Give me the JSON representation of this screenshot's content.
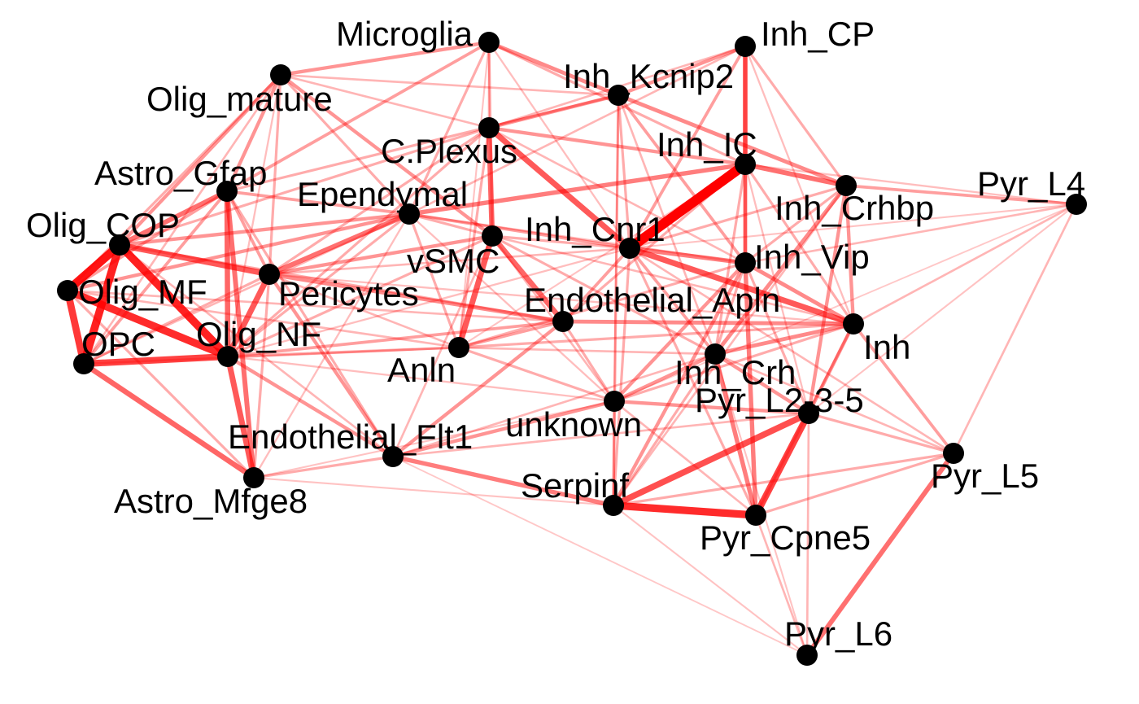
{
  "network": {
    "edge_color": "#ff0000",
    "node_color": "#000000",
    "label_color": "#000000",
    "nodes": [
      {
        "id": "Microglia",
        "label": "Microglia"
      },
      {
        "id": "Olig_mature",
        "label": "Olig_mature"
      },
      {
        "id": "Inh_CP",
        "label": "Inh_CP"
      },
      {
        "id": "Inh_Kcnip2",
        "label": "Inh_Kcnip2"
      },
      {
        "id": "C.Plexus",
        "label": "C.Plexus"
      },
      {
        "id": "Inh_IC",
        "label": "Inh_IC"
      },
      {
        "id": "Astro_Gfap",
        "label": "Astro_Gfap"
      },
      {
        "id": "Ependymal",
        "label": "Ependymal"
      },
      {
        "id": "Inh_Crhbp",
        "label": "Inh_Crhbp"
      },
      {
        "id": "Pyr_L4",
        "label": "Pyr_L4"
      },
      {
        "id": "Olig_COP",
        "label": "Olig_COP"
      },
      {
        "id": "vSMC",
        "label": "vSMC"
      },
      {
        "id": "Inh_Cnr1",
        "label": "Inh_Cnr1"
      },
      {
        "id": "Inh_Vip",
        "label": "Inh_Vip"
      },
      {
        "id": "Olig_MF",
        "label": "Olig_MF"
      },
      {
        "id": "Pericytes",
        "label": "Pericytes"
      },
      {
        "id": "Endothelial_Apln",
        "label": "Endothelial_Apln"
      },
      {
        "id": "Inh",
        "label": "Inh"
      },
      {
        "id": "OPC",
        "label": "OPC"
      },
      {
        "id": "Olig_NF",
        "label": "Olig_NF"
      },
      {
        "id": "Anln",
        "label": "Anln"
      },
      {
        "id": "Inh_Crh",
        "label": "Inh_Crh"
      },
      {
        "id": "unknown",
        "label": "unknown"
      },
      {
        "id": "Pyr_L2-3-5",
        "label": "Pyr_L2-3-5"
      },
      {
        "id": "Endothelial_Flt1",
        "label": "Endothelial_Flt1"
      },
      {
        "id": "Pyr_L5",
        "label": "Pyr_L5"
      },
      {
        "id": "Serpinf",
        "label": "Serpinf"
      },
      {
        "id": "Astro_Mfge8",
        "label": "Astro_Mfge8"
      },
      {
        "id": "Pyr_Cpne5",
        "label": "Pyr_Cpne5"
      },
      {
        "id": "Pyr_L6",
        "label": "Pyr_L6"
      }
    ],
    "edges": [
      {
        "s": "Inh_IC",
        "t": "Inh_Cnr1",
        "w": 1.0
      },
      {
        "s": "Olig_COP",
        "t": "Olig_MF",
        "w": 0.85
      },
      {
        "s": "Olig_COP",
        "t": "OPC",
        "w": 0.8
      },
      {
        "s": "Olig_COP",
        "t": "Olig_NF",
        "w": 0.8
      },
      {
        "s": "Olig_MF",
        "t": "Olig_NF",
        "w": 0.75
      },
      {
        "s": "Olig_MF",
        "t": "OPC",
        "w": 0.7
      },
      {
        "s": "OPC",
        "t": "Olig_NF",
        "w": 0.65
      },
      {
        "s": "Serpinf",
        "t": "Pyr_Cpne5",
        "w": 0.75
      },
      {
        "s": "Pyr_L2-3-5",
        "t": "Pyr_Cpne5",
        "w": 0.65
      },
      {
        "s": "Pyr_L2-3-5",
        "t": "Serpinf",
        "w": 0.6
      },
      {
        "s": "Olig_COP",
        "t": "Pericytes",
        "w": 0.55
      },
      {
        "s": "Astro_Gfap",
        "t": "Olig_NF",
        "w": 0.5
      },
      {
        "s": "Astro_Gfap",
        "t": "Olig_COP",
        "w": 0.45
      },
      {
        "s": "Olig_NF",
        "t": "Astro_Mfge8",
        "w": 0.55
      },
      {
        "s": "OPC",
        "t": "Astro_Mfge8",
        "w": 0.5
      },
      {
        "s": "Olig_NF",
        "t": "Pericytes",
        "w": 0.55
      },
      {
        "s": "vSMC",
        "t": "Anln",
        "w": 0.55
      },
      {
        "s": "vSMC",
        "t": "C.Plexus",
        "w": 0.5
      },
      {
        "s": "C.Plexus",
        "t": "Inh_Cnr1",
        "w": 0.55
      },
      {
        "s": "vSMC",
        "t": "Endothelial_Apln",
        "w": 0.5
      },
      {
        "s": "Inh_Cnr1",
        "t": "Inh",
        "w": 0.55
      },
      {
        "s": "Ependymal",
        "t": "Pericytes",
        "w": 0.45
      },
      {
        "s": "Ependymal",
        "t": "Inh_IC",
        "w": 0.4
      },
      {
        "s": "Inh_IC",
        "t": "Inh_Crhbp",
        "w": 0.45
      },
      {
        "s": "Inh_CP",
        "t": "Inh_IC",
        "w": 0.45
      },
      {
        "s": "Pyr_L5",
        "t": "Pyr_L6",
        "w": 0.45
      },
      {
        "s": "Astro_Gfap",
        "t": "Astro_Mfge8",
        "w": 0.45
      },
      {
        "s": "Endothelial_Flt1",
        "t": "Serpinf",
        "w": 0.4
      },
      {
        "s": "Inh_Vip",
        "t": "Pyr_Cpne5",
        "w": 0.4
      },
      {
        "s": "Inh_Crh",
        "t": "Pyr_Cpne5",
        "w": 0.4
      },
      {
        "s": "Inh_Cnr1",
        "t": "Inh_Vip",
        "w": 0.4
      },
      {
        "s": "Endothelial_Apln",
        "t": "Inh",
        "w": 0.35
      },
      {
        "s": "Microglia",
        "t": "Inh_Kcnip2",
        "w": 0.35
      },
      {
        "s": "Microglia",
        "t": "Olig_mature",
        "w": 0.3
      },
      {
        "s": "Inh_Kcnip2",
        "t": "Inh_Crhbp",
        "w": 0.35
      },
      {
        "s": "Inh_Crhbp",
        "t": "Inh_Crh",
        "w": 0.35
      },
      {
        "s": "Inh_Crhbp",
        "t": "Pyr_L2-3-5",
        "w": 0.3
      },
      {
        "s": "Inh",
        "t": "Inh_Crh",
        "w": 0.35
      },
      {
        "s": "Inh_Vip",
        "t": "Inh",
        "w": 0.35
      },
      {
        "s": "Inh_IC",
        "t": "Inh_Vip",
        "w": 0.35
      },
      {
        "s": "Olig_mature",
        "t": "Astro_Gfap",
        "w": 0.3
      },
      {
        "s": "Olig_mature",
        "t": "Olig_COP",
        "w": 0.3
      },
      {
        "s": "Olig_mature",
        "t": "vSMC",
        "w": 0.3
      },
      {
        "s": "C.Plexus",
        "t": "Inh_Kcnip2",
        "w": 0.3
      },
      {
        "s": "C.Plexus",
        "t": "Inh_IC",
        "w": 0.3
      },
      {
        "s": "Pericytes",
        "t": "Endothelial_Apln",
        "w": 0.35
      },
      {
        "s": "Pericytes",
        "t": "Endothelial_Flt1",
        "w": 0.3
      },
      {
        "s": "Pericytes",
        "t": "vSMC",
        "w": 0.3
      },
      {
        "s": "Olig_COP",
        "t": "Ependymal",
        "w": 0.3
      },
      {
        "s": "Olig_MF",
        "t": "Ependymal",
        "w": 0.3
      },
      {
        "s": "Olig_NF",
        "t": "Endothelial_Flt1",
        "w": 0.3
      },
      {
        "s": "Endothelial_Flt1",
        "t": "unknown",
        "w": 0.3
      },
      {
        "s": "Endothelial_Flt1",
        "t": "Endothelial_Apln",
        "w": 0.3
      },
      {
        "s": "unknown",
        "t": "Inh_Crh",
        "w": 0.3
      },
      {
        "s": "unknown",
        "t": "Inh_Vip",
        "w": 0.3
      },
      {
        "s": "unknown",
        "t": "Pyr_L2-3-5",
        "w": 0.3
      },
      {
        "s": "Serpinf",
        "t": "Inh_Vip",
        "w": 0.3
      },
      {
        "s": "Inh_Crh",
        "t": "Pyr_L2-3-5",
        "w": 0.3
      },
      {
        "s": "Inh",
        "t": "Pyr_L2-3-5",
        "w": 0.3
      },
      {
        "s": "Inh",
        "t": "Pyr_L5",
        "w": 0.25
      },
      {
        "s": "Inh_Crhbp",
        "t": "Inh",
        "w": 0.3
      },
      {
        "s": "Inh_Crhbp",
        "t": "Pyr_L4",
        "w": 0.25
      },
      {
        "s": "Inh_CP",
        "t": "Inh_Kcnip2",
        "w": 0.3
      },
      {
        "s": "Inh_CP",
        "t": "Inh_Vip",
        "w": 0.3
      },
      {
        "s": "Inh_CP",
        "t": "Inh_Cnr1",
        "w": 0.25
      },
      {
        "s": "Inh_Kcnip2",
        "t": "Inh_Vip",
        "w": 0.25
      },
      {
        "s": "Inh_Kcnip2",
        "t": "Serpinf",
        "w": 0.2
      },
      {
        "s": "Inh_Kcnip2",
        "t": "Astro_Gfap",
        "w": 0.2
      },
      {
        "s": "Microglia",
        "t": "Astro_Gfap",
        "w": 0.25
      },
      {
        "s": "Microglia",
        "t": "Inh_IC",
        "w": 0.2
      },
      {
        "s": "Microglia",
        "t": "vSMC",
        "w": 0.2
      },
      {
        "s": "Microglia",
        "t": "Ependymal",
        "w": 0.2
      },
      {
        "s": "Olig_mature",
        "t": "Pericytes",
        "w": 0.2
      },
      {
        "s": "Olig_mature",
        "t": "Olig_MF",
        "w": 0.2
      },
      {
        "s": "Olig_mature",
        "t": "Ependymal",
        "w": 0.2
      },
      {
        "s": "Astro_Gfap",
        "t": "Ependymal",
        "w": 0.25
      },
      {
        "s": "Astro_Gfap",
        "t": "Pericytes",
        "w": 0.25
      },
      {
        "s": "Astro_Gfap",
        "t": "OPC",
        "w": 0.25
      },
      {
        "s": "Astro_Gfap",
        "t": "Olig_MF",
        "w": 0.25
      },
      {
        "s": "Astro_Gfap",
        "t": "Endothelial_Flt1",
        "w": 0.2
      },
      {
        "s": "C.Plexus",
        "t": "Olig_NF",
        "w": 0.2
      },
      {
        "s": "C.Plexus",
        "t": "Anln",
        "w": 0.2
      },
      {
        "s": "C.Plexus",
        "t": "Olig_COP",
        "w": 0.2
      },
      {
        "s": "Ependymal",
        "t": "Inh_Cnr1",
        "w": 0.25
      },
      {
        "s": "Ependymal",
        "t": "Anln",
        "w": 0.2
      },
      {
        "s": "Ependymal",
        "t": "Olig_NF",
        "w": 0.2
      },
      {
        "s": "Ependymal",
        "t": "vSMC",
        "w": 0.2
      },
      {
        "s": "vSMC",
        "t": "Olig_NF",
        "w": 0.2
      },
      {
        "s": "vSMC",
        "t": "Inh_Crh",
        "w": 0.2
      },
      {
        "s": "vSMC",
        "t": "Inh_Cnr1",
        "w": 0.2
      },
      {
        "s": "Inh_Cnr1",
        "t": "Inh_Crh",
        "w": 0.25
      },
      {
        "s": "Inh_Cnr1",
        "t": "Endothelial_Apln",
        "w": 0.25
      },
      {
        "s": "Inh_Cnr1",
        "t": "Serpinf",
        "w": 0.2
      },
      {
        "s": "Inh_Cnr1",
        "t": "Pyr_Cpne5",
        "w": 0.2
      },
      {
        "s": "Inh_Cnr1",
        "t": "Inh_Crhbp",
        "w": 0.2
      },
      {
        "s": "Inh_Cnr1",
        "t": "Pyr_L5",
        "w": 0.15
      },
      {
        "s": "Inh_Vip",
        "t": "Inh_Crh",
        "w": 0.2
      },
      {
        "s": "Inh_Vip",
        "t": "Pyr_L2-3-5",
        "w": 0.2
      },
      {
        "s": "Inh_Vip",
        "t": "Pyr_L4",
        "w": 0.15
      },
      {
        "s": "Inh_Vip",
        "t": "Anln",
        "w": 0.2
      },
      {
        "s": "Inh_IC",
        "t": "Inh_Crh",
        "w": 0.2
      },
      {
        "s": "Inh_IC",
        "t": "Inh",
        "w": 0.2
      },
      {
        "s": "Inh_IC",
        "t": "Endothelial_Apln",
        "w": 0.2
      },
      {
        "s": "Endothelial_Apln",
        "t": "Anln",
        "w": 0.25
      },
      {
        "s": "Endothelial_Apln",
        "t": "Olig_NF",
        "w": 0.25
      },
      {
        "s": "Endothelial_Apln",
        "t": "unknown",
        "w": 0.2
      },
      {
        "s": "Endothelial_Apln",
        "t": "Olig_COP",
        "w": 0.2
      },
      {
        "s": "Anln",
        "t": "Olig_NF",
        "w": 0.2
      },
      {
        "s": "Anln",
        "t": "Inh",
        "w": 0.2
      },
      {
        "s": "Anln",
        "t": "unknown",
        "w": 0.2
      },
      {
        "s": "Anln",
        "t": "Inh_Crh",
        "w": 0.15
      },
      {
        "s": "Anln",
        "t": "OPC",
        "w": 0.15
      },
      {
        "s": "Astro_Mfge8",
        "t": "Endothelial_Flt1",
        "w": 0.2
      },
      {
        "s": "Astro_Mfge8",
        "t": "Olig_MF",
        "w": 0.2
      },
      {
        "s": "Astro_Mfge8",
        "t": "Pericytes",
        "w": 0.2
      },
      {
        "s": "Astro_Mfge8",
        "t": "Serpinf",
        "w": 0.1
      },
      {
        "s": "Astro_Mfge8",
        "t": "unknown",
        "w": 0.1
      },
      {
        "s": "Endothelial_Flt1",
        "t": "Pyr_L2-3-5",
        "w": 0.15
      },
      {
        "s": "Endothelial_Flt1",
        "t": "Inh_Crh",
        "w": 0.15
      },
      {
        "s": "Endothelial_Flt1",
        "t": "Pyr_L6",
        "w": 0.08
      },
      {
        "s": "Serpinf",
        "t": "Inh_Crh",
        "w": 0.2
      },
      {
        "s": "Serpinf",
        "t": "unknown",
        "w": 0.2
      },
      {
        "s": "Serpinf",
        "t": "Pyr_L5",
        "w": 0.2
      },
      {
        "s": "Serpinf",
        "t": "Pyr_L6",
        "w": 0.1
      },
      {
        "s": "Pyr_Cpne5",
        "t": "Pyr_L5",
        "w": 0.2
      },
      {
        "s": "Pyr_Cpne5",
        "t": "Pyr_L6",
        "w": 0.15
      },
      {
        "s": "Pyr_Cpne5",
        "t": "Inh",
        "w": 0.2
      },
      {
        "s": "Pyr_Cpne5",
        "t": "unknown",
        "w": 0.15
      },
      {
        "s": "Pyr_L2-3-5",
        "t": "Pyr_L5",
        "w": 0.2
      },
      {
        "s": "Pyr_L2-3-5",
        "t": "Pyr_L6",
        "w": 0.15
      },
      {
        "s": "Pyr_L4",
        "t": "Pyr_L5",
        "w": 0.15
      },
      {
        "s": "Pyr_L4",
        "t": "Inh",
        "w": 0.15
      },
      {
        "s": "Pyr_L4",
        "t": "Pyr_L2-3-5",
        "w": 0.1
      },
      {
        "s": "Pyr_L4",
        "t": "Inh_Cnr1",
        "w": 0.1
      },
      {
        "s": "Pyr_L4",
        "t": "unknown",
        "w": 0.08
      },
      {
        "s": "Inh",
        "t": "unknown",
        "w": 0.2
      },
      {
        "s": "Inh_Crh",
        "t": "Pyr_L5",
        "w": 0.15
      },
      {
        "s": "Inh_Crh",
        "t": "Pyr_L6",
        "w": 0.1
      },
      {
        "s": "Inh_Crhbp",
        "t": "Inh_Vip",
        "w": 0.2
      },
      {
        "s": "Inh_Crhbp",
        "t": "Serpinf",
        "w": 0.15
      },
      {
        "s": "Inh_CP",
        "t": "Inh_Crhbp",
        "w": 0.2
      },
      {
        "s": "Inh_CP",
        "t": "C.Plexus",
        "w": 0.15
      },
      {
        "s": "Inh_CP",
        "t": "Ependymal",
        "w": 0.15
      },
      {
        "s": "Inh_Kcnip2",
        "t": "Olig_mature",
        "w": 0.15
      },
      {
        "s": "Inh_Kcnip2",
        "t": "Inh_Cnr1",
        "w": 0.2
      },
      {
        "s": "Inh_Kcnip2",
        "t": "Inh_Crh",
        "w": 0.15
      },
      {
        "s": "Inh_Kcnip2",
        "t": "unknown",
        "w": 0.12
      },
      {
        "s": "C.Plexus",
        "t": "Pericytes",
        "w": 0.2
      },
      {
        "s": "C.Plexus",
        "t": "Microglia",
        "w": 0.15
      },
      {
        "s": "C.Plexus",
        "t": "Inh_Vip",
        "w": 0.15
      },
      {
        "s": "Olig_COP",
        "t": "Endothelial_Flt1",
        "w": 0.15
      },
      {
        "s": "Olig_MF",
        "t": "Endothelial_Apln",
        "w": 0.15
      },
      {
        "s": "Olig_MF",
        "t": "Anln",
        "w": 0.15
      },
      {
        "s": "OPC",
        "t": "Pericytes",
        "w": 0.2
      },
      {
        "s": "OPC",
        "t": "Ependymal",
        "w": 0.15
      },
      {
        "s": "Microglia",
        "t": "Inh_Cnr1",
        "w": 0.12
      },
      {
        "s": "Microglia",
        "t": "Anln",
        "w": 0.1
      },
      {
        "s": "Olig_mature",
        "t": "C.Plexus",
        "w": 0.15
      },
      {
        "s": "Olig_mature",
        "t": "OPC",
        "w": 0.15
      },
      {
        "s": "Olig_mature",
        "t": "Olig_NF",
        "w": 0.12
      },
      {
        "s": "Ependymal",
        "t": "Inh_Vip",
        "w": 0.15
      },
      {
        "s": "Ependymal",
        "t": "unknown",
        "w": 0.12
      },
      {
        "s": "Ependymal",
        "t": "Astro_Mfge8",
        "w": 0.12
      },
      {
        "s": "vSMC",
        "t": "unknown",
        "w": 0.15
      },
      {
        "s": "vSMC",
        "t": "Inh",
        "w": 0.15
      },
      {
        "s": "vSMC",
        "t": "Endothelial_Flt1",
        "w": 0.15
      },
      {
        "s": "Pericytes",
        "t": "Inh_Cnr1",
        "w": 0.15
      },
      {
        "s": "Pericytes",
        "t": "Anln",
        "w": 0.15
      },
      {
        "s": "Pericytes",
        "t": "Inh",
        "w": 0.12
      },
      {
        "s": "Olig_NF",
        "t": "Inh_Cnr1",
        "w": 0.12
      },
      {
        "s": "Olig_NF",
        "t": "unknown",
        "w": 0.12
      },
      {
        "s": "Inh_IC",
        "t": "Pyr_L4",
        "w": 0.12
      },
      {
        "s": "Inh_IC",
        "t": "Pyr_L2-3-5",
        "w": 0.12
      },
      {
        "s": "Inh_IC",
        "t": "Anln",
        "w": 0.1
      },
      {
        "s": "Inh_CP",
        "t": "Inh",
        "w": 0.12
      }
    ]
  }
}
